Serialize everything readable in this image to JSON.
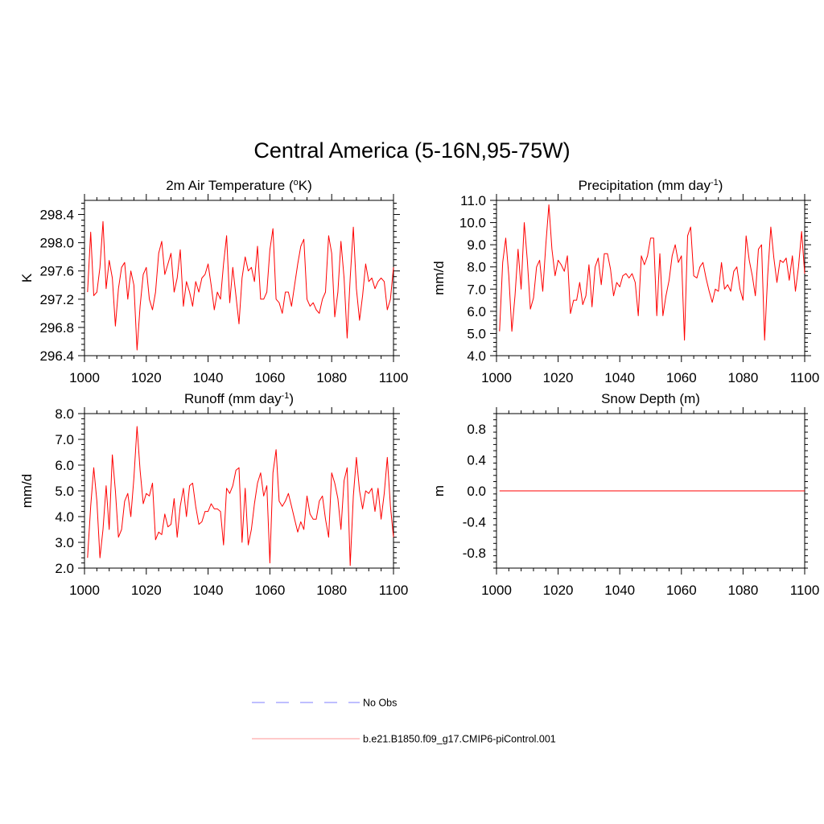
{
  "page_title": "Central America (5-16N,95-75W)",
  "colors": {
    "model_line": "#ff0000",
    "obs_line": "#9999ff",
    "legend_model_line": "#ffaaaa",
    "axis": "#000000"
  },
  "legend": {
    "obs_label": "No Obs",
    "model_label": "b.e21.B1850.f09_g17.CMIP6-piControl.001"
  },
  "chart_data": [
    {
      "id": "temp",
      "type": "line",
      "title": "2m Air Temperature (",
      "title_sup": "o",
      "title_tail": "K)",
      "ylabel": "K",
      "xlim": [
        1000,
        1100
      ],
      "ylim": [
        296.4,
        298.6
      ],
      "xticks": [
        1000,
        1020,
        1040,
        1060,
        1080,
        1100
      ],
      "yticks": [
        296.4,
        296.8,
        297.2,
        297.6,
        298.0,
        298.4
      ],
      "ytick_labels": [
        "296.4",
        "296.8",
        "297.2",
        "297.6",
        "298.0",
        "298.4"
      ],
      "series": [
        {
          "name": "b.e21.B1850.f09_g17.CMIP6-piControl.001",
          "x_start": 1001,
          "x_step": 1,
          "values": [
            297.3,
            298.15,
            297.25,
            297.3,
            297.65,
            298.3,
            297.35,
            297.75,
            297.5,
            296.82,
            297.35,
            297.65,
            297.72,
            297.2,
            297.6,
            297.4,
            296.48,
            297.1,
            297.55,
            297.65,
            297.2,
            297.05,
            297.3,
            297.85,
            298.02,
            297.55,
            297.7,
            297.85,
            297.3,
            297.5,
            297.9,
            297.1,
            297.45,
            297.3,
            297.1,
            297.45,
            297.3,
            297.5,
            297.55,
            297.7,
            297.4,
            297.05,
            297.3,
            297.2,
            297.7,
            298.1,
            297.15,
            297.65,
            297.25,
            296.85,
            297.5,
            297.8,
            297.6,
            297.65,
            297.45,
            297.95,
            297.2,
            297.2,
            297.3,
            297.9,
            298.2,
            297.2,
            297.15,
            297.0,
            297.3,
            297.3,
            297.1,
            297.4,
            297.7,
            297.95,
            298.05,
            297.2,
            297.1,
            297.15,
            297.05,
            297.0,
            297.2,
            297.3,
            298.1,
            297.85,
            296.95,
            297.3,
            298.02,
            297.5,
            296.65,
            297.5,
            298.22,
            297.35,
            296.9,
            297.25,
            297.7,
            297.45,
            297.5,
            297.35,
            297.45,
            297.5,
            297.45,
            297.05,
            297.2,
            297.65
          ]
        }
      ]
    },
    {
      "id": "precip",
      "type": "line",
      "title": "Precipitation (mm day",
      "title_sup": "-1",
      "title_tail": ")",
      "ylabel": "mm/d",
      "xlim": [
        1000,
        1100
      ],
      "ylim": [
        4.0,
        11.0
      ],
      "xticks": [
        1000,
        1020,
        1040,
        1060,
        1080,
        1100
      ],
      "yticks": [
        4,
        5,
        6,
        7,
        8,
        9,
        10,
        11
      ],
      "ytick_labels": [
        "4.0",
        "5.0",
        "6.0",
        "7.0",
        "8.0",
        "9.0",
        "10.0",
        "11.0"
      ],
      "series": [
        {
          "name": "b.e21.B1850.f09_g17.CMIP6-piControl.001",
          "x_start": 1001,
          "x_step": 1,
          "values": [
            5.1,
            8.2,
            9.3,
            7.6,
            5.1,
            6.7,
            8.8,
            7.0,
            10.0,
            8.3,
            6.1,
            6.6,
            8.0,
            8.3,
            6.9,
            9.0,
            10.8,
            8.8,
            7.6,
            8.3,
            8.1,
            7.8,
            8.5,
            5.9,
            6.5,
            6.5,
            7.3,
            6.3,
            6.7,
            8.1,
            6.2,
            8.0,
            8.4,
            7.2,
            8.6,
            8.6,
            7.9,
            6.7,
            7.3,
            7.1,
            7.6,
            7.7,
            7.5,
            7.7,
            7.3,
            5.8,
            8.5,
            8.1,
            8.5,
            9.3,
            9.3,
            5.8,
            8.6,
            5.8,
            6.7,
            7.4,
            8.5,
            9.0,
            8.2,
            8.5,
            4.7,
            9.4,
            9.8,
            7.6,
            7.5,
            8.0,
            8.2,
            7.5,
            6.9,
            6.4,
            7.0,
            6.9,
            8.2,
            7.0,
            7.2,
            6.9,
            7.8,
            8.0,
            7.0,
            6.5,
            9.4,
            8.3,
            7.6,
            6.7,
            8.8,
            9.0,
            4.7,
            7.6,
            9.8,
            8.4,
            7.3,
            8.3,
            8.2,
            8.4,
            7.4,
            8.5,
            6.9,
            8.0,
            9.6,
            7.7
          ]
        }
      ]
    },
    {
      "id": "runoff",
      "type": "line",
      "title": "Runoff (mm day",
      "title_sup": "-1",
      "title_tail": ")",
      "ylabel": "mm/d",
      "xlim": [
        1000,
        1100
      ],
      "ylim": [
        2.0,
        8.0
      ],
      "xticks": [
        1000,
        1020,
        1040,
        1060,
        1080,
        1100
      ],
      "yticks": [
        2,
        3,
        4,
        5,
        6,
        7,
        8
      ],
      "ytick_labels": [
        "2.0",
        "3.0",
        "4.0",
        "5.0",
        "6.0",
        "7.0",
        "8.0"
      ],
      "series": [
        {
          "name": "b.e21.B1850.f09_g17.CMIP6-piControl.001",
          "x_start": 1001,
          "x_step": 1,
          "values": [
            2.4,
            4.4,
            5.9,
            4.6,
            2.4,
            3.5,
            5.2,
            3.5,
            6.4,
            5.0,
            3.2,
            3.5,
            4.6,
            4.9,
            4.0,
            5.5,
            7.5,
            5.8,
            4.5,
            4.9,
            4.8,
            5.3,
            3.1,
            3.4,
            3.3,
            4.1,
            3.6,
            3.7,
            4.7,
            3.2,
            4.4,
            5.1,
            4.0,
            5.2,
            5.3,
            4.4,
            3.7,
            3.8,
            4.2,
            4.2,
            4.5,
            4.3,
            4.3,
            4.2,
            2.9,
            5.1,
            4.9,
            5.2,
            5.8,
            5.9,
            3.0,
            5.1,
            2.9,
            3.5,
            4.5,
            5.3,
            5.7,
            4.8,
            5.2,
            2.2,
            5.7,
            6.6,
            4.6,
            4.4,
            4.6,
            4.9,
            4.4,
            3.9,
            3.4,
            3.8,
            3.5,
            4.8,
            4.1,
            3.9,
            3.9,
            4.6,
            4.8,
            3.9,
            3.2,
            5.7,
            5.3,
            4.7,
            3.5,
            5.4,
            5.9,
            2.1,
            4.8,
            6.3,
            5.0,
            4.3,
            5.0,
            4.9,
            5.1,
            4.2,
            5.1,
            3.9,
            4.9,
            6.3,
            4.4,
            3.2
          ]
        }
      ]
    },
    {
      "id": "snow",
      "type": "line",
      "title": "Snow Depth (m)",
      "title_sup": "",
      "title_tail": "",
      "ylabel": "m",
      "xlim": [
        1000,
        1100
      ],
      "ylim": [
        -1.0,
        1.0
      ],
      "xticks": [
        1000,
        1020,
        1040,
        1060,
        1080,
        1100
      ],
      "yticks": [
        -0.8,
        -0.4,
        0.0,
        0.4,
        0.8
      ],
      "ytick_labels": [
        "-0.8",
        "-0.4",
        "0.0",
        "0.4",
        "0.8"
      ],
      "series": [
        {
          "name": "b.e21.B1850.f09_g17.CMIP6-piControl.001",
          "x_start": 1001,
          "x_step": 99,
          "values": [
            0.0,
            0.0
          ]
        }
      ]
    }
  ]
}
